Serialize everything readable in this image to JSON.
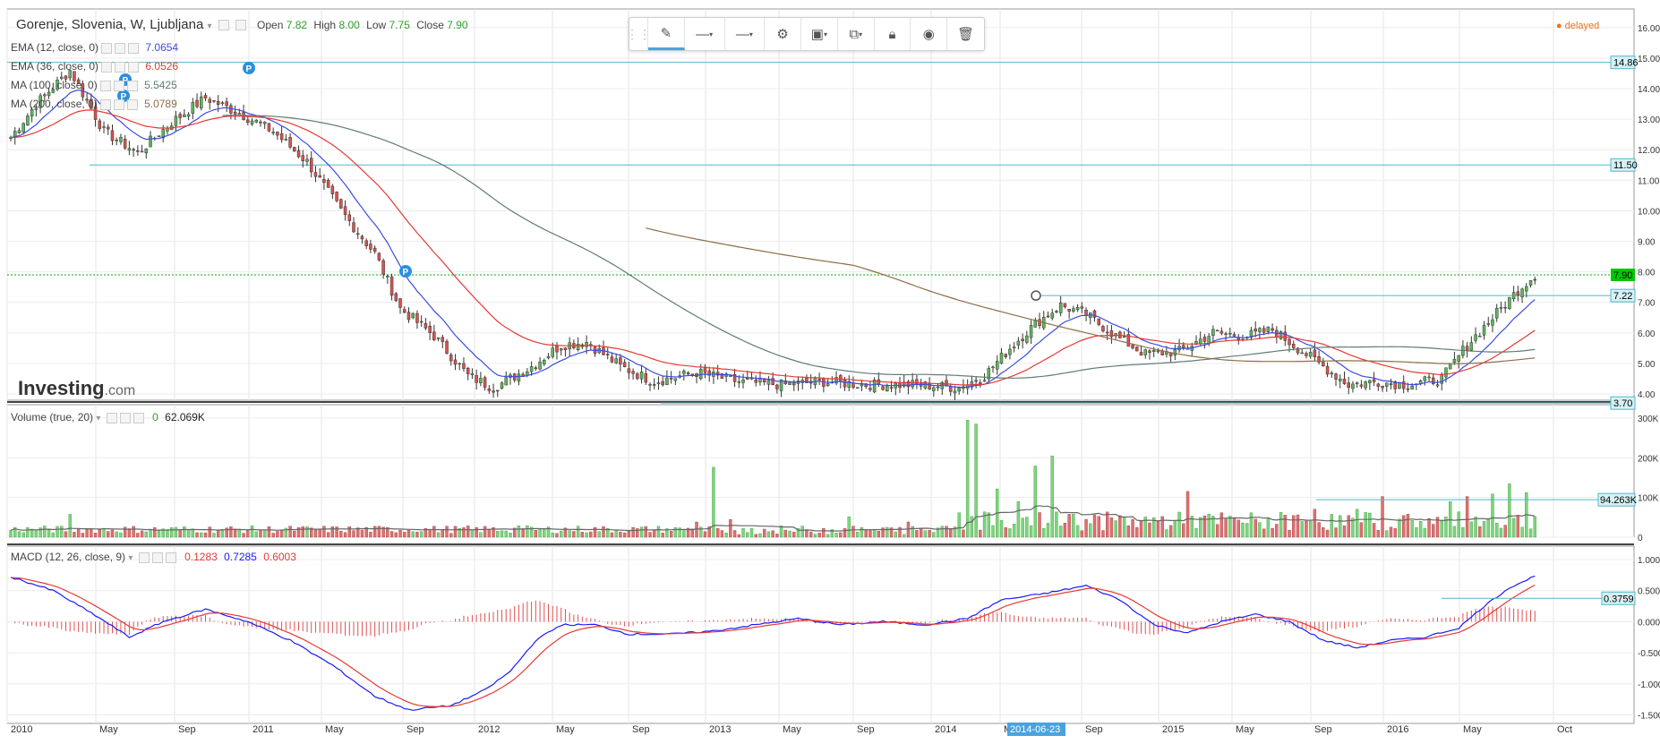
{
  "header": {
    "symbol": "Gorenje, Slovenia, W, Ljubljana",
    "open_label": "Open",
    "open": "7.82",
    "high_label": "High",
    "high": "8.00",
    "low_label": "Low",
    "low": "7.75",
    "close_label": "Close",
    "close": "7.90",
    "delayed": "delayed"
  },
  "indicators": [
    {
      "name": "EMA (12, close, 0)",
      "value": "7.0654",
      "color": "#3b4de0"
    },
    {
      "name": "EMA (36, close, 0)",
      "value": "6.0526",
      "color": "#e53935"
    },
    {
      "name": "MA (100, close, 0)",
      "value": "5.5425",
      "color": "#607d74"
    },
    {
      "name": "MA (200, close, 0)",
      "value": "5.0789",
      "color": "#8d6e4a"
    }
  ],
  "volume_legend": {
    "name": "Volume (true, 20)",
    "value0": "0",
    "value": "62.069K"
  },
  "macd_legend": {
    "name": "MACD (12, 26, close, 9)",
    "v1": "0.1283",
    "v2": "0.7285",
    "v3": "0.6003"
  },
  "logo": {
    "brand": "Investing",
    "suffix": ".com"
  },
  "x_axis": {
    "labels": [
      "2010",
      "May",
      "Sep",
      "2011",
      "May",
      "Sep",
      "2012",
      "May",
      "Sep",
      "2013",
      "May",
      "Sep",
      "2014",
      "Ma",
      "Sep",
      "2015",
      "May",
      "Sep",
      "2016",
      "May",
      "Oct"
    ],
    "highlight": "2014-06-23"
  },
  "price_axis": {
    "labels": [
      "16.00",
      "15.00",
      "14.00",
      "13.00",
      "12.00",
      "11.00",
      "10.00",
      "9.00",
      "8.00",
      "7.00",
      "6.00",
      "5.00",
      "4.00"
    ]
  },
  "price_tags": [
    {
      "value": "14.86",
      "kind": "line"
    },
    {
      "value": "11.50",
      "kind": "line"
    },
    {
      "value": "7.90",
      "kind": "last"
    },
    {
      "value": "7.22",
      "kind": "line"
    },
    {
      "value": "3.70",
      "kind": "line"
    }
  ],
  "volume_axis": {
    "labels": [
      "300K",
      "200K",
      "100K",
      "0"
    ],
    "tag": "94.263K"
  },
  "macd_axis": {
    "labels": [
      "1.000",
      "0.500",
      "0.000",
      "-0.500",
      "-1.000",
      "-1.500"
    ],
    "tag": "0.3759"
  },
  "colors": {
    "up": "#5cb85c",
    "down": "#d9534f",
    "ema12": "#3b4de0",
    "ema36": "#e53935",
    "ma100": "#607d74",
    "ma200": "#8d6e4a",
    "hline": "#4fb7c9",
    "last": "#00b000"
  },
  "chart_data": {
    "type": "candlestick",
    "title": "Gorenje, Slovenia, W, Ljubljana",
    "ylim": [
      3.5,
      16.2
    ],
    "horizontal_lines": [
      14.86,
      11.5,
      7.22,
      3.7
    ],
    "last_close": 7.9,
    "price_keypoints": [
      [
        0,
        12.4
      ],
      [
        6,
        13.5
      ],
      [
        14,
        14.6
      ],
      [
        22,
        12.6
      ],
      [
        30,
        11.9
      ],
      [
        38,
        12.9
      ],
      [
        46,
        13.7
      ],
      [
        54,
        13.2
      ],
      [
        62,
        12.6
      ],
      [
        70,
        11.6
      ],
      [
        78,
        10.0
      ],
      [
        86,
        8.6
      ],
      [
        92,
        6.8
      ],
      [
        100,
        5.9
      ],
      [
        108,
        4.6
      ],
      [
        114,
        4.2
      ],
      [
        122,
        4.8
      ],
      [
        130,
        5.6
      ],
      [
        136,
        5.7
      ],
      [
        144,
        4.9
      ],
      [
        152,
        4.4
      ],
      [
        162,
        4.7
      ],
      [
        172,
        4.4
      ],
      [
        182,
        4.3
      ],
      [
        192,
        4.4
      ],
      [
        202,
        4.3
      ],
      [
        214,
        4.3
      ],
      [
        224,
        4.2
      ],
      [
        230,
        4.6
      ],
      [
        236,
        5.5
      ],
      [
        242,
        6.3
      ],
      [
        248,
        6.9
      ],
      [
        254,
        6.6
      ],
      [
        262,
        5.8
      ],
      [
        268,
        5.3
      ],
      [
        276,
        5.4
      ],
      [
        284,
        6.0
      ],
      [
        292,
        5.9
      ],
      [
        298,
        6.1
      ],
      [
        304,
        5.5
      ],
      [
        310,
        4.9
      ],
      [
        316,
        4.3
      ],
      [
        322,
        4.4
      ],
      [
        330,
        4.3
      ],
      [
        338,
        4.5
      ],
      [
        344,
        5.6
      ],
      [
        350,
        6.5
      ],
      [
        356,
        7.4
      ],
      [
        360,
        7.9
      ]
    ],
    "series": [
      {
        "name": "EMA (12, close, 0)",
        "last": 7.0654
      },
      {
        "name": "EMA (36, close, 0)",
        "last": 6.0526
      },
      {
        "name": "MA (100, close, 0)",
        "last": 5.5425
      },
      {
        "name": "MA (200, close, 0)",
        "last": 5.0789
      }
    ],
    "volume": {
      "ylim": [
        0,
        320000
      ],
      "tag": 94263,
      "spikes": [
        [
          14,
          0.18
        ],
        [
          96,
          0.04
        ],
        [
          120,
          0.09
        ],
        [
          162,
          0.12
        ],
        [
          166,
          0.55
        ],
        [
          170,
          0.14
        ],
        [
          194,
          0.06
        ],
        [
          198,
          0.16
        ],
        [
          212,
          0.12
        ],
        [
          226,
          0.92
        ],
        [
          228,
          0.89
        ],
        [
          233,
          0.38
        ],
        [
          238,
          0.28
        ],
        [
          242,
          0.56
        ],
        [
          246,
          0.64
        ],
        [
          250,
          0.18
        ],
        [
          278,
          0.36
        ],
        [
          308,
          0.22
        ],
        [
          312,
          0.18
        ],
        [
          318,
          0.22
        ],
        [
          324,
          0.32
        ],
        [
          340,
          0.28
        ],
        [
          344,
          0.32
        ],
        [
          350,
          0.34
        ],
        [
          354,
          0.42
        ],
        [
          358,
          0.35
        ]
      ]
    },
    "macd": {
      "ylim": [
        -1.55,
        1.1
      ],
      "keypoints": [
        [
          0,
          0.72
        ],
        [
          10,
          0.5
        ],
        [
          20,
          0.1
        ],
        [
          28,
          -0.25
        ],
        [
          36,
          0.0
        ],
        [
          46,
          0.2
        ],
        [
          56,
          0.0
        ],
        [
          66,
          -0.3
        ],
        [
          76,
          -0.7
        ],
        [
          86,
          -1.2
        ],
        [
          94,
          -1.42
        ],
        [
          104,
          -1.35
        ],
        [
          112,
          -1.1
        ],
        [
          118,
          -0.8
        ],
        [
          124,
          -0.3
        ],
        [
          130,
          -0.05
        ],
        [
          138,
          -0.05
        ],
        [
          146,
          -0.2
        ],
        [
          156,
          -0.2
        ],
        [
          166,
          -0.15
        ],
        [
          176,
          -0.05
        ],
        [
          186,
          0.05
        ],
        [
          196,
          -0.05
        ],
        [
          206,
          0.0
        ],
        [
          216,
          -0.05
        ],
        [
          226,
          0.05
        ],
        [
          234,
          0.35
        ],
        [
          244,
          0.45
        ],
        [
          254,
          0.58
        ],
        [
          262,
          0.35
        ],
        [
          270,
          -0.05
        ],
        [
          278,
          -0.18
        ],
        [
          286,
          0.0
        ],
        [
          294,
          0.12
        ],
        [
          302,
          0.0
        ],
        [
          310,
          -0.3
        ],
        [
          318,
          -0.42
        ],
        [
          326,
          -0.3
        ],
        [
          334,
          -0.25
        ],
        [
          342,
          -0.1
        ],
        [
          348,
          0.25
        ],
        [
          354,
          0.55
        ],
        [
          360,
          0.73
        ]
      ]
    }
  }
}
